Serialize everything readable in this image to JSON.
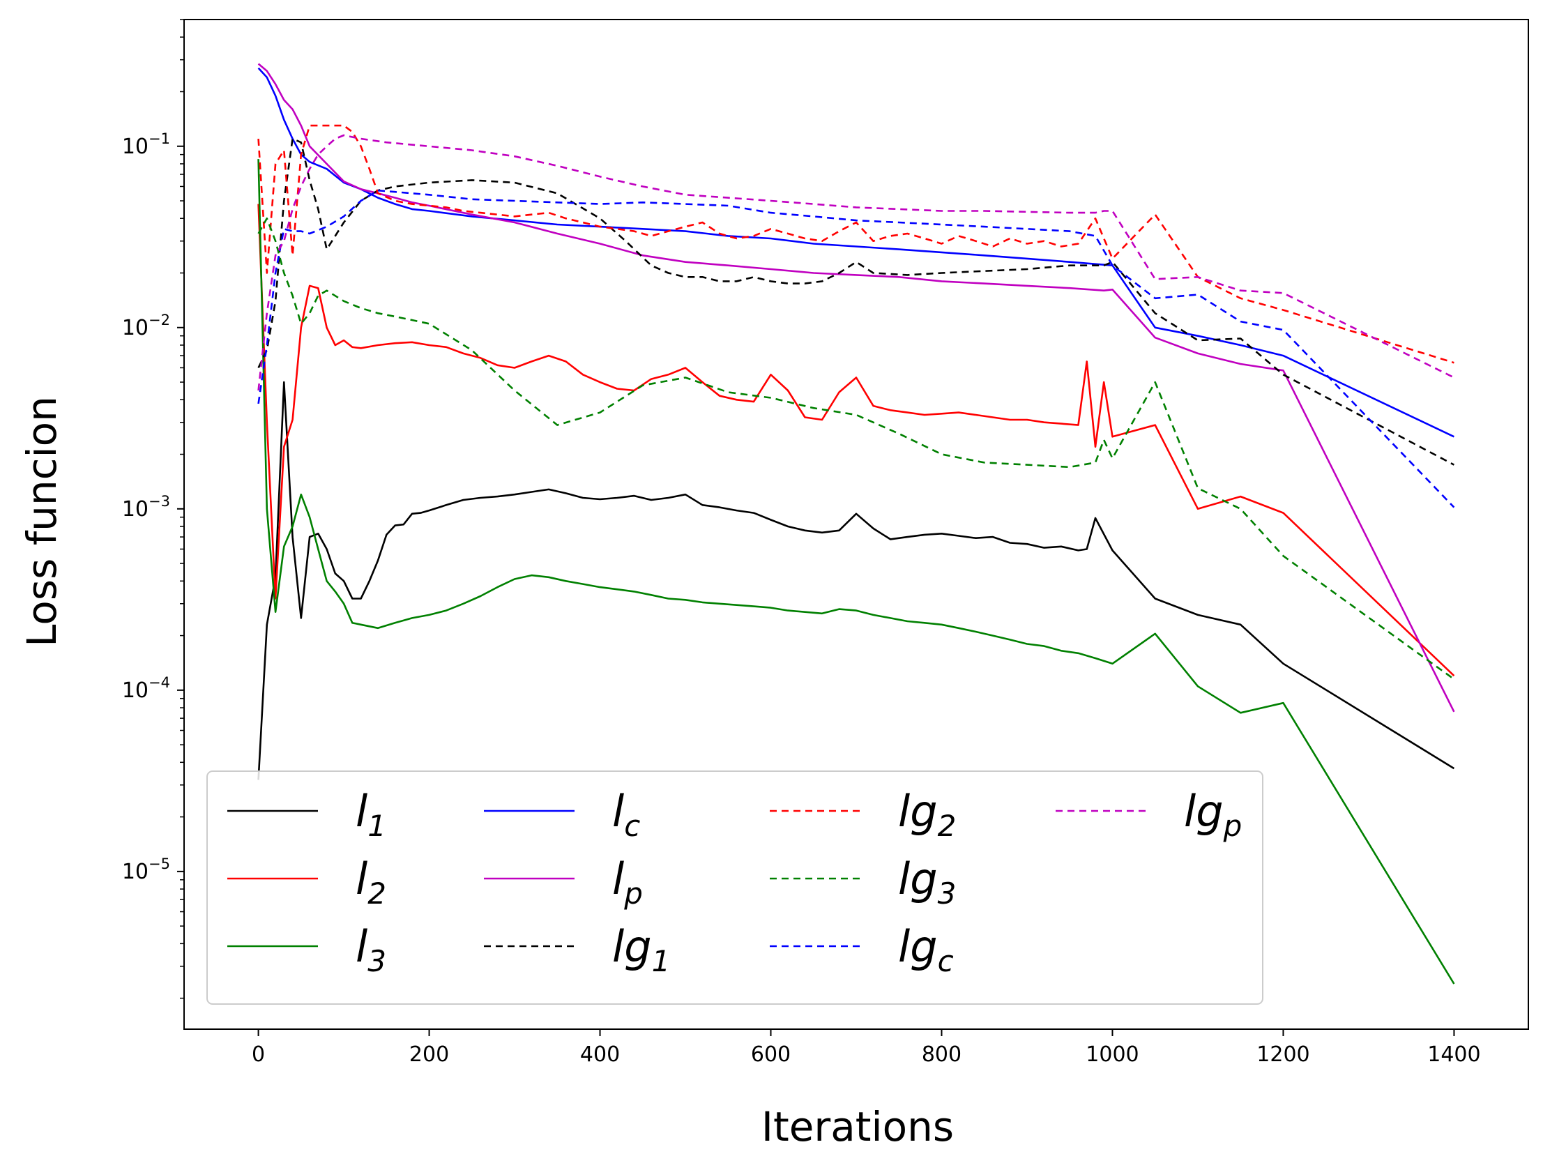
{
  "chart_data": {
    "type": "line",
    "title": "",
    "xlabel": "Iterations",
    "ylabel": "Loss funcion",
    "xscale": "linear",
    "yscale": "log",
    "xlim": [
      -87,
      1487
    ],
    "ylim": [
      1.35e-06,
      0.5
    ],
    "xticks": [
      0,
      200,
      400,
      600,
      800,
      1000,
      1200,
      1400
    ],
    "yticks": [
      {
        "value": 0.1,
        "base": "10",
        "exp": "−1"
      },
      {
        "value": 0.01,
        "base": "10",
        "exp": "−2"
      },
      {
        "value": 0.001,
        "base": "10",
        "exp": "−3"
      },
      {
        "value": 0.0001,
        "base": "10",
        "exp": "−4"
      },
      {
        "value": 1e-05,
        "base": "10",
        "exp": "−5"
      }
    ],
    "legend_position": "lower-left",
    "series": [
      {
        "name": "l1",
        "label_main": "l",
        "label_sub": "1",
        "color": "#000000",
        "dash": "solid",
        "x": [
          0,
          10,
          20,
          30,
          40,
          50,
          60,
          70,
          80,
          90,
          100,
          110,
          120,
          130,
          140,
          150,
          160,
          170,
          180,
          190,
          200,
          220,
          240,
          260,
          280,
          300,
          320,
          340,
          360,
          380,
          400,
          420,
          440,
          460,
          480,
          500,
          520,
          540,
          560,
          580,
          600,
          620,
          640,
          660,
          680,
          700,
          720,
          740,
          760,
          780,
          800,
          820,
          840,
          860,
          880,
          900,
          920,
          940,
          960,
          970,
          980,
          1000,
          1050,
          1100,
          1150,
          1200,
          1400
        ],
        "y": [
          3.2e-05,
          0.00023,
          0.00042,
          0.005,
          0.0007,
          0.00025,
          0.0007,
          0.00073,
          0.0006,
          0.00044,
          0.0004,
          0.00032,
          0.00032,
          0.0004,
          0.00052,
          0.00072,
          0.00081,
          0.00082,
          0.00094,
          0.00095,
          0.00098,
          0.00105,
          0.00112,
          0.00115,
          0.00117,
          0.0012,
          0.00124,
          0.00128,
          0.00122,
          0.00115,
          0.00113,
          0.00115,
          0.00118,
          0.00112,
          0.00115,
          0.0012,
          0.00105,
          0.00102,
          0.00098,
          0.00095,
          0.00087,
          0.0008,
          0.00076,
          0.00074,
          0.00076,
          0.00094,
          0.00078,
          0.00068,
          0.0007,
          0.00072,
          0.00073,
          0.00071,
          0.00069,
          0.0007,
          0.00065,
          0.00064,
          0.00061,
          0.00062,
          0.00059,
          0.0006,
          0.00089,
          0.00059,
          0.00032,
          0.00026,
          0.00023,
          0.00014,
          3.7e-05
        ]
      },
      {
        "name": "l2",
        "label_main": "l",
        "label_sub": "2",
        "color": "#ff0000",
        "dash": "solid",
        "x": [
          0,
          10,
          20,
          30,
          40,
          50,
          60,
          70,
          80,
          90,
          100,
          110,
          120,
          140,
          160,
          180,
          200,
          220,
          240,
          260,
          280,
          300,
          320,
          340,
          360,
          380,
          400,
          420,
          440,
          460,
          480,
          500,
          520,
          540,
          560,
          580,
          600,
          620,
          640,
          660,
          680,
          700,
          720,
          740,
          760,
          780,
          800,
          820,
          840,
          860,
          880,
          900,
          920,
          940,
          960,
          970,
          980,
          990,
          1000,
          1050,
          1100,
          1150,
          1200,
          1400
        ],
        "y": [
          0.048,
          0.003,
          0.00032,
          0.0022,
          0.0031,
          0.01,
          0.017,
          0.0165,
          0.01,
          0.008,
          0.0085,
          0.0078,
          0.0077,
          0.008,
          0.0082,
          0.0083,
          0.008,
          0.0078,
          0.0072,
          0.0068,
          0.0062,
          0.006,
          0.0065,
          0.007,
          0.0065,
          0.0055,
          0.005,
          0.0046,
          0.0045,
          0.0052,
          0.0055,
          0.006,
          0.005,
          0.0042,
          0.004,
          0.0039,
          0.0055,
          0.0045,
          0.0032,
          0.0031,
          0.0044,
          0.0053,
          0.0037,
          0.0035,
          0.0034,
          0.0033,
          0.00335,
          0.0034,
          0.0033,
          0.0032,
          0.0031,
          0.0031,
          0.003,
          0.00295,
          0.0029,
          0.0065,
          0.0022,
          0.005,
          0.0025,
          0.0029,
          0.001,
          0.00117,
          0.00095,
          0.00012
        ]
      },
      {
        "name": "l3",
        "label_main": "l",
        "label_sub": "3",
        "color": "#008000",
        "dash": "solid",
        "x": [
          0,
          10,
          20,
          30,
          40,
          50,
          60,
          70,
          80,
          90,
          100,
          110,
          120,
          140,
          160,
          180,
          200,
          220,
          240,
          260,
          280,
          300,
          320,
          340,
          360,
          380,
          400,
          420,
          440,
          460,
          480,
          500,
          520,
          540,
          560,
          580,
          600,
          620,
          640,
          660,
          680,
          700,
          720,
          740,
          760,
          780,
          800,
          820,
          840,
          860,
          880,
          900,
          920,
          940,
          960,
          980,
          1000,
          1050,
          1100,
          1150,
          1200,
          1400
        ],
        "y": [
          0.085,
          0.001,
          0.00027,
          0.00062,
          0.0008,
          0.0012,
          0.0009,
          0.0006,
          0.0004,
          0.00035,
          0.0003,
          0.000235,
          0.00023,
          0.00022,
          0.000235,
          0.00025,
          0.00026,
          0.000275,
          0.0003,
          0.00033,
          0.00037,
          0.00041,
          0.00043,
          0.00042,
          0.0004,
          0.000385,
          0.00037,
          0.00036,
          0.00035,
          0.000335,
          0.00032,
          0.000315,
          0.000305,
          0.0003,
          0.000295,
          0.00029,
          0.000285,
          0.000275,
          0.00027,
          0.000265,
          0.00028,
          0.000275,
          0.00026,
          0.00025,
          0.00024,
          0.000235,
          0.00023,
          0.00022,
          0.00021,
          0.0002,
          0.00019,
          0.00018,
          0.000175,
          0.000165,
          0.00016,
          0.00015,
          0.00014,
          0.000205,
          0.000105,
          7.5e-05,
          8.5e-05,
          2.4e-06
        ]
      },
      {
        "name": "lc",
        "label_main": "l",
        "label_sub": "c",
        "color": "#0000ff",
        "dash": "solid",
        "x": [
          0,
          10,
          20,
          30,
          40,
          50,
          60,
          80,
          100,
          120,
          140,
          160,
          180,
          200,
          250,
          300,
          350,
          400,
          450,
          500,
          550,
          600,
          650,
          700,
          750,
          800,
          850,
          900,
          950,
          1000,
          1050,
          1100,
          1150,
          1200,
          1400
        ],
        "y": [
          0.27,
          0.24,
          0.19,
          0.14,
          0.11,
          0.09,
          0.082,
          0.075,
          0.063,
          0.058,
          0.052,
          0.048,
          0.045,
          0.044,
          0.041,
          0.039,
          0.037,
          0.036,
          0.035,
          0.034,
          0.032,
          0.031,
          0.029,
          0.028,
          0.027,
          0.026,
          0.025,
          0.024,
          0.023,
          0.022,
          0.01,
          0.009,
          0.008,
          0.007,
          0.0025
        ]
      },
      {
        "name": "lp",
        "label_main": "l",
        "label_sub": "p",
        "color": "#c000c0",
        "dash": "solid",
        "x": [
          0,
          10,
          20,
          30,
          40,
          50,
          60,
          80,
          100,
          120,
          140,
          160,
          180,
          200,
          250,
          300,
          350,
          400,
          450,
          500,
          550,
          600,
          650,
          700,
          750,
          800,
          850,
          900,
          950,
          990,
          1000,
          1050,
          1100,
          1150,
          1200,
          1400
        ],
        "y": [
          0.285,
          0.26,
          0.22,
          0.18,
          0.16,
          0.13,
          0.1,
          0.08,
          0.064,
          0.058,
          0.055,
          0.052,
          0.049,
          0.047,
          0.042,
          0.038,
          0.033,
          0.029,
          0.025,
          0.023,
          0.022,
          0.021,
          0.02,
          0.0195,
          0.019,
          0.018,
          0.0175,
          0.017,
          0.0165,
          0.016,
          0.0162,
          0.0088,
          0.0072,
          0.0063,
          0.0058,
          7.6e-05
        ]
      },
      {
        "name": "lg1",
        "label_main": "lg",
        "label_sub": "1",
        "color": "#000000",
        "dash": "dashed",
        "x": [
          0,
          10,
          20,
          30,
          40,
          50,
          60,
          70,
          80,
          100,
          120,
          140,
          160,
          200,
          250,
          300,
          350,
          400,
          430,
          460,
          480,
          500,
          520,
          540,
          560,
          580,
          600,
          620,
          640,
          660,
          680,
          700,
          720,
          760,
          800,
          850,
          900,
          950,
          990,
          1000,
          1050,
          1100,
          1150,
          1200,
          1400
        ],
        "y": [
          0.006,
          0.0075,
          0.014,
          0.05,
          0.11,
          0.105,
          0.065,
          0.045,
          0.027,
          0.038,
          0.05,
          0.057,
          0.06,
          0.063,
          0.065,
          0.063,
          0.055,
          0.04,
          0.03,
          0.022,
          0.02,
          0.019,
          0.019,
          0.018,
          0.018,
          0.019,
          0.018,
          0.0175,
          0.0175,
          0.018,
          0.02,
          0.023,
          0.02,
          0.0195,
          0.02,
          0.0205,
          0.021,
          0.022,
          0.022,
          0.023,
          0.012,
          0.0085,
          0.0087,
          0.0055,
          0.00175
        ]
      },
      {
        "name": "lg2",
        "label_main": "lg",
        "label_sub": "2",
        "color": "#ff0000",
        "dash": "dashed",
        "x": [
          0,
          10,
          20,
          30,
          40,
          50,
          60,
          70,
          80,
          90,
          100,
          110,
          120,
          130,
          140,
          160,
          180,
          200,
          220,
          240,
          260,
          280,
          300,
          320,
          340,
          360,
          380,
          400,
          420,
          440,
          460,
          480,
          500,
          520,
          540,
          560,
          580,
          600,
          620,
          640,
          660,
          680,
          700,
          720,
          740,
          760,
          780,
          800,
          820,
          840,
          860,
          880,
          900,
          920,
          940,
          960,
          980,
          1000,
          1050,
          1100,
          1150,
          1200,
          1400
        ],
        "y": [
          0.11,
          0.02,
          0.08,
          0.095,
          0.025,
          0.09,
          0.13,
          0.13,
          0.13,
          0.13,
          0.13,
          0.12,
          0.1,
          0.075,
          0.055,
          0.05,
          0.048,
          0.047,
          0.046,
          0.044,
          0.043,
          0.042,
          0.041,
          0.042,
          0.043,
          0.04,
          0.038,
          0.036,
          0.035,
          0.034,
          0.032,
          0.034,
          0.036,
          0.038,
          0.033,
          0.031,
          0.032,
          0.035,
          0.033,
          0.031,
          0.03,
          0.034,
          0.038,
          0.03,
          0.032,
          0.033,
          0.031,
          0.029,
          0.032,
          0.03,
          0.028,
          0.031,
          0.029,
          0.03,
          0.028,
          0.029,
          0.04,
          0.024,
          0.042,
          0.019,
          0.0145,
          0.0125,
          0.0064
        ]
      },
      {
        "name": "lg3",
        "label_main": "lg",
        "label_sub": "3",
        "color": "#008000",
        "dash": "dashed",
        "x": [
          0,
          10,
          20,
          30,
          40,
          50,
          60,
          70,
          80,
          100,
          120,
          140,
          160,
          180,
          200,
          250,
          300,
          350,
          400,
          450,
          500,
          550,
          600,
          650,
          700,
          750,
          800,
          850,
          900,
          950,
          980,
          990,
          1000,
          1050,
          1100,
          1150,
          1200,
          1400
        ],
        "y": [
          0.033,
          0.04,
          0.03,
          0.02,
          0.015,
          0.0105,
          0.012,
          0.015,
          0.016,
          0.014,
          0.0128,
          0.012,
          0.0115,
          0.011,
          0.0105,
          0.0075,
          0.0045,
          0.0029,
          0.0034,
          0.0048,
          0.0053,
          0.0044,
          0.0041,
          0.0036,
          0.0033,
          0.0026,
          0.002,
          0.0018,
          0.00175,
          0.0017,
          0.0018,
          0.0024,
          0.0019,
          0.005,
          0.0013,
          0.001,
          0.00055,
          0.000115
        ]
      },
      {
        "name": "lgc",
        "label_main": "lg",
        "label_sub": "c",
        "color": "#0000ff",
        "dash": "dashed",
        "x": [
          0,
          10,
          20,
          30,
          40,
          50,
          60,
          80,
          100,
          120,
          140,
          160,
          200,
          250,
          300,
          350,
          400,
          450,
          500,
          550,
          600,
          650,
          700,
          750,
          800,
          850,
          900,
          950,
          980,
          1000,
          1050,
          1100,
          1150,
          1200,
          1400
        ],
        "y": [
          0.0038,
          0.008,
          0.02,
          0.035,
          0.034,
          0.034,
          0.033,
          0.036,
          0.041,
          0.05,
          0.057,
          0.056,
          0.054,
          0.051,
          0.05,
          0.049,
          0.048,
          0.049,
          0.048,
          0.047,
          0.043,
          0.041,
          0.039,
          0.038,
          0.037,
          0.036,
          0.035,
          0.034,
          0.032,
          0.022,
          0.0145,
          0.0152,
          0.0108,
          0.0097,
          0.00102
        ]
      },
      {
        "name": "lgp",
        "label_main": "lg",
        "label_sub": "p",
        "color": "#c000c0",
        "dash": "dashed",
        "x": [
          0,
          10,
          20,
          30,
          40,
          50,
          60,
          70,
          80,
          90,
          100,
          120,
          150,
          200,
          250,
          300,
          350,
          400,
          450,
          500,
          550,
          600,
          650,
          700,
          750,
          800,
          850,
          900,
          950,
          980,
          990,
          1000,
          1050,
          1100,
          1150,
          1200,
          1400
        ],
        "y": [
          0.0045,
          0.012,
          0.025,
          0.03,
          0.045,
          0.06,
          0.075,
          0.09,
          0.1,
          0.11,
          0.115,
          0.11,
          0.105,
          0.1,
          0.095,
          0.088,
          0.078,
          0.068,
          0.06,
          0.054,
          0.052,
          0.05,
          0.048,
          0.046,
          0.045,
          0.044,
          0.044,
          0.0435,
          0.043,
          0.043,
          0.044,
          0.044,
          0.0185,
          0.019,
          0.016,
          0.0155,
          0.0053
        ]
      }
    ]
  }
}
